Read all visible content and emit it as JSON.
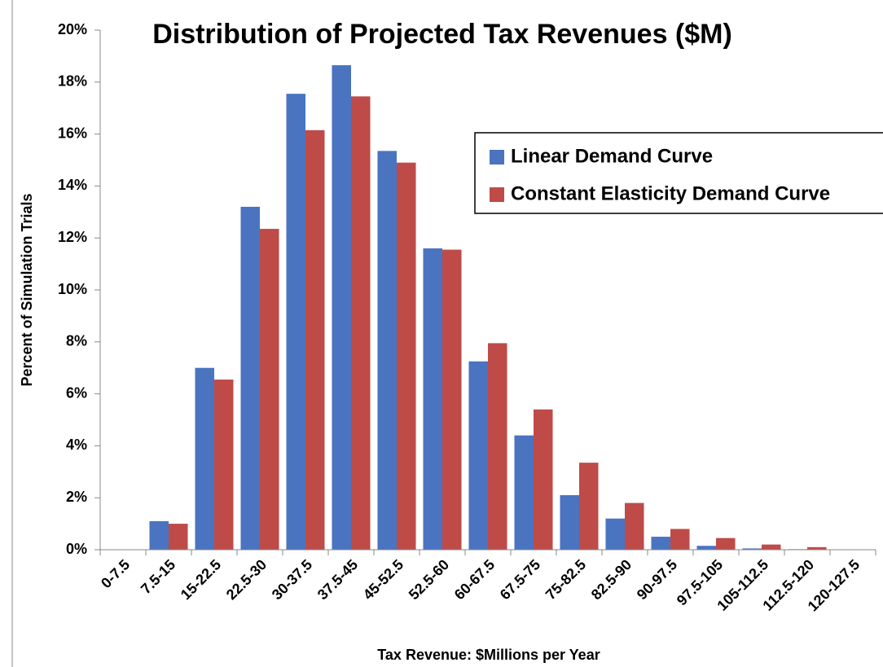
{
  "chart_data": {
    "type": "bar",
    "title": "Distribution of Projected Tax Revenues ($M)",
    "xlabel": "Tax Revenue: $Millions per Year",
    "ylabel": "Percent of Simulation Trials",
    "categories": [
      "0-7.5",
      "7.5-15",
      "15-22.5",
      "22.5-30",
      "30-37.5",
      "37.5-45",
      "45-52.5",
      "52.5-60",
      "60-67.5",
      "67.5-75",
      "75-82.5",
      "82.5-90",
      "90-97.5",
      "97.5-105",
      "105-112.5",
      "112.5-120",
      "120-127.5"
    ],
    "series": [
      {
        "name": "Linear Demand Curve",
        "color": "#4a74c0",
        "values": [
          0,
          1.1,
          7.0,
          13.2,
          17.55,
          18.65,
          15.35,
          11.6,
          7.25,
          4.4,
          2.1,
          1.2,
          0.5,
          0.15,
          0.05,
          0.02,
          0
        ]
      },
      {
        "name": "Constant Elasticity Demand Curve",
        "color": "#be4b48",
        "values": [
          0,
          1.0,
          6.55,
          12.35,
          16.15,
          17.45,
          14.9,
          11.55,
          7.95,
          5.4,
          3.35,
          1.8,
          0.8,
          0.45,
          0.2,
          0.1,
          0
        ]
      }
    ],
    "ylim": [
      0,
      20
    ],
    "yticks": [
      {
        "value": 0,
        "label": "0%"
      },
      {
        "value": 2,
        "label": "2%"
      },
      {
        "value": 4,
        "label": "4%"
      },
      {
        "value": 6,
        "label": "6%"
      },
      {
        "value": 8,
        "label": "8%"
      },
      {
        "value": 10,
        "label": "10%"
      },
      {
        "value": 12,
        "label": "12%"
      },
      {
        "value": 14,
        "label": "14%"
      },
      {
        "value": 16,
        "label": "16%"
      },
      {
        "value": 18,
        "label": "18%"
      },
      {
        "value": 20,
        "label": "20%"
      }
    ],
    "grid": false,
    "legend": "upper right"
  }
}
